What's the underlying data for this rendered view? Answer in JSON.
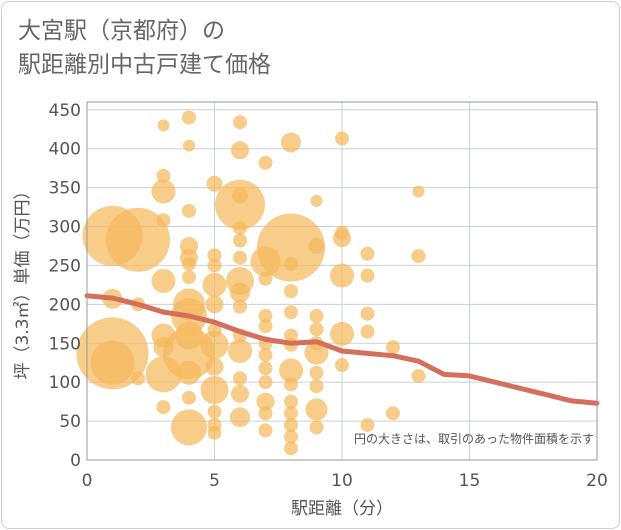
{
  "title_line1": "大宮駅（京都府）の",
  "title_line2": "駅距離別中古戸建て価格",
  "chart_data": {
    "type": "scatter",
    "title": "大宮駅（京都府）の駅距離別中古戸建て価格",
    "xlabel": "駅距離（分）",
    "ylabel": "坪（3.3㎡）単価（万円）",
    "xlim": [
      0,
      20
    ],
    "ylim": [
      0,
      460
    ],
    "xticks": [
      0,
      5,
      10,
      15,
      20
    ],
    "yticks": [
      0,
      50,
      100,
      150,
      200,
      250,
      300,
      350,
      400,
      450
    ],
    "grid": true,
    "bubble_color": "#f5b95b",
    "line_color": "#d46f5c",
    "annotation": "円の大きさは、取引のあった物件面積を示す",
    "bubbles": [
      {
        "x": 3,
        "y": 430,
        "r": 6
      },
      {
        "x": 4,
        "y": 440,
        "r": 7
      },
      {
        "x": 4,
        "y": 404,
        "r": 6
      },
      {
        "x": 6,
        "y": 434,
        "r": 7
      },
      {
        "x": 6,
        "y": 398,
        "r": 9
      },
      {
        "x": 7,
        "y": 382,
        "r": 7
      },
      {
        "x": 8,
        "y": 408,
        "r": 10
      },
      {
        "x": 10,
        "y": 413,
        "r": 7
      },
      {
        "x": 3,
        "y": 365,
        "r": 7
      },
      {
        "x": 3,
        "y": 345,
        "r": 12
      },
      {
        "x": 5,
        "y": 355,
        "r": 8
      },
      {
        "x": 6,
        "y": 340,
        "r": 8
      },
      {
        "x": 6,
        "y": 328,
        "r": 25
      },
      {
        "x": 9,
        "y": 333,
        "r": 6
      },
      {
        "x": 13,
        "y": 345,
        "r": 6
      },
      {
        "x": 4,
        "y": 320,
        "r": 7
      },
      {
        "x": 3,
        "y": 308,
        "r": 7
      },
      {
        "x": 1,
        "y": 288,
        "r": 30
      },
      {
        "x": 2,
        "y": 283,
        "r": 32
      },
      {
        "x": 4,
        "y": 275,
        "r": 9
      },
      {
        "x": 6,
        "y": 298,
        "r": 7
      },
      {
        "x": 6,
        "y": 282,
        "r": 7
      },
      {
        "x": 8,
        "y": 273,
        "r": 34
      },
      {
        "x": 9,
        "y": 275,
        "r": 8
      },
      {
        "x": 10,
        "y": 285,
        "r": 9
      },
      {
        "x": 10,
        "y": 292,
        "r": 7
      },
      {
        "x": 4,
        "y": 260,
        "r": 9
      },
      {
        "x": 4,
        "y": 252,
        "r": 7
      },
      {
        "x": 5,
        "y": 263,
        "r": 7
      },
      {
        "x": 5,
        "y": 250,
        "r": 7
      },
      {
        "x": 6,
        "y": 260,
        "r": 7
      },
      {
        "x": 7,
        "y": 255,
        "r": 15
      },
      {
        "x": 8,
        "y": 252,
        "r": 7
      },
      {
        "x": 11,
        "y": 265,
        "r": 7
      },
      {
        "x": 13,
        "y": 262,
        "r": 7
      },
      {
        "x": 3,
        "y": 230,
        "r": 12
      },
      {
        "x": 4,
        "y": 235,
        "r": 7
      },
      {
        "x": 5,
        "y": 225,
        "r": 12
      },
      {
        "x": 6,
        "y": 230,
        "r": 14
      },
      {
        "x": 6,
        "y": 215,
        "r": 10
      },
      {
        "x": 7,
        "y": 233,
        "r": 7
      },
      {
        "x": 8,
        "y": 217,
        "r": 7
      },
      {
        "x": 10,
        "y": 237,
        "r": 12
      },
      {
        "x": 11,
        "y": 237,
        "r": 7
      },
      {
        "x": 1,
        "y": 207,
        "r": 10
      },
      {
        "x": 2,
        "y": 200,
        "r": 7
      },
      {
        "x": 4,
        "y": 200,
        "r": 16
      },
      {
        "x": 4,
        "y": 185,
        "r": 18
      },
      {
        "x": 5,
        "y": 200,
        "r": 9
      },
      {
        "x": 6,
        "y": 197,
        "r": 7
      },
      {
        "x": 7,
        "y": 185,
        "r": 7
      },
      {
        "x": 7,
        "y": 172,
        "r": 7
      },
      {
        "x": 8,
        "y": 190,
        "r": 7
      },
      {
        "x": 9,
        "y": 185,
        "r": 7
      },
      {
        "x": 11,
        "y": 188,
        "r": 7
      },
      {
        "x": 3,
        "y": 160,
        "r": 12
      },
      {
        "x": 3,
        "y": 145,
        "r": 10
      },
      {
        "x": 4,
        "y": 160,
        "r": 14
      },
      {
        "x": 4,
        "y": 137,
        "r": 26
      },
      {
        "x": 5,
        "y": 148,
        "r": 14
      },
      {
        "x": 5,
        "y": 167,
        "r": 7
      },
      {
        "x": 6,
        "y": 160,
        "r": 7
      },
      {
        "x": 6,
        "y": 140,
        "r": 12
      },
      {
        "x": 7,
        "y": 150,
        "r": 7
      },
      {
        "x": 7,
        "y": 135,
        "r": 7
      },
      {
        "x": 8,
        "y": 160,
        "r": 7
      },
      {
        "x": 8,
        "y": 148,
        "r": 7
      },
      {
        "x": 9,
        "y": 168,
        "r": 7
      },
      {
        "x": 9,
        "y": 150,
        "r": 7
      },
      {
        "x": 9,
        "y": 138,
        "r": 12
      },
      {
        "x": 10,
        "y": 162,
        "r": 12
      },
      {
        "x": 11,
        "y": 165,
        "r": 7
      },
      {
        "x": 12,
        "y": 145,
        "r": 7
      },
      {
        "x": 1,
        "y": 137,
        "r": 36
      },
      {
        "x": 1,
        "y": 125,
        "r": 22
      },
      {
        "x": 2,
        "y": 105,
        "r": 7
      },
      {
        "x": 3,
        "y": 110,
        "r": 18
      },
      {
        "x": 4,
        "y": 112,
        "r": 12
      },
      {
        "x": 5,
        "y": 120,
        "r": 9
      },
      {
        "x": 5,
        "y": 90,
        "r": 14
      },
      {
        "x": 6,
        "y": 105,
        "r": 7
      },
      {
        "x": 6,
        "y": 85,
        "r": 9
      },
      {
        "x": 7,
        "y": 118,
        "r": 7
      },
      {
        "x": 7,
        "y": 100,
        "r": 7
      },
      {
        "x": 8,
        "y": 115,
        "r": 12
      },
      {
        "x": 8,
        "y": 97,
        "r": 7
      },
      {
        "x": 9,
        "y": 112,
        "r": 7
      },
      {
        "x": 9,
        "y": 95,
        "r": 7
      },
      {
        "x": 10,
        "y": 122,
        "r": 7
      },
      {
        "x": 13,
        "y": 108,
        "r": 7
      },
      {
        "x": 3,
        "y": 68,
        "r": 7
      },
      {
        "x": 4,
        "y": 80,
        "r": 7
      },
      {
        "x": 4,
        "y": 42,
        "r": 18
      },
      {
        "x": 5,
        "y": 62,
        "r": 7
      },
      {
        "x": 5,
        "y": 45,
        "r": 7
      },
      {
        "x": 5,
        "y": 35,
        "r": 7
      },
      {
        "x": 6,
        "y": 55,
        "r": 10
      },
      {
        "x": 7,
        "y": 75,
        "r": 9
      },
      {
        "x": 7,
        "y": 60,
        "r": 7
      },
      {
        "x": 7,
        "y": 38,
        "r": 7
      },
      {
        "x": 8,
        "y": 75,
        "r": 7
      },
      {
        "x": 8,
        "y": 60,
        "r": 7
      },
      {
        "x": 8,
        "y": 45,
        "r": 7
      },
      {
        "x": 8,
        "y": 30,
        "r": 7
      },
      {
        "x": 8,
        "y": 15,
        "r": 7
      },
      {
        "x": 9,
        "y": 65,
        "r": 11
      },
      {
        "x": 9,
        "y": 42,
        "r": 7
      },
      {
        "x": 11,
        "y": 45,
        "r": 7
      },
      {
        "x": 12,
        "y": 60,
        "r": 7
      }
    ],
    "trend_line": {
      "x": [
        0,
        1,
        2,
        3,
        4,
        5,
        6,
        7,
        8,
        9,
        10,
        11,
        12,
        13,
        14,
        15,
        16,
        17,
        18,
        19,
        20
      ],
      "y": [
        211,
        208,
        200,
        190,
        185,
        177,
        165,
        155,
        150,
        152,
        140,
        137,
        134,
        127,
        110,
        108,
        100,
        92,
        84,
        76,
        73
      ]
    }
  }
}
